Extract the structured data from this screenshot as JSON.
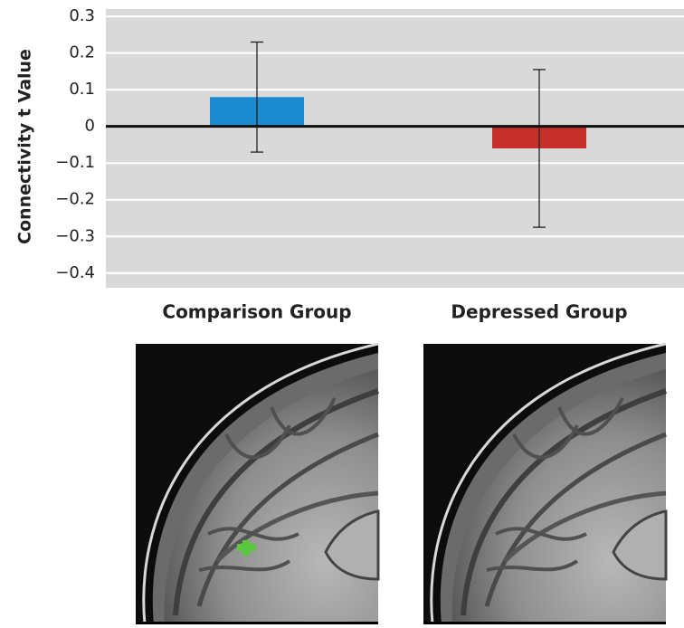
{
  "chart_data": {
    "type": "bar",
    "ylabel": "Connectivity t Value",
    "categories": [
      "Comparison Group",
      "Depressed Group"
    ],
    "values": [
      0.08,
      -0.06
    ],
    "errors": [
      0.15,
      0.215
    ],
    "colors": [
      "#1b8bd0",
      "#c5302b"
    ],
    "ylim": [
      -0.44,
      0.32
    ],
    "yticks": [
      0.3,
      0.2,
      0.1,
      0,
      {
        "value": -0.1,
        "label": "−0.1"
      },
      {
        "value": -0.2,
        "label": "−0.2"
      },
      {
        "value": -0.3,
        "label": "−0.3"
      },
      {
        "value": -0.4,
        "label": "−0.4"
      }
    ],
    "grid": true,
    "background": "#d9d9d9"
  }
}
